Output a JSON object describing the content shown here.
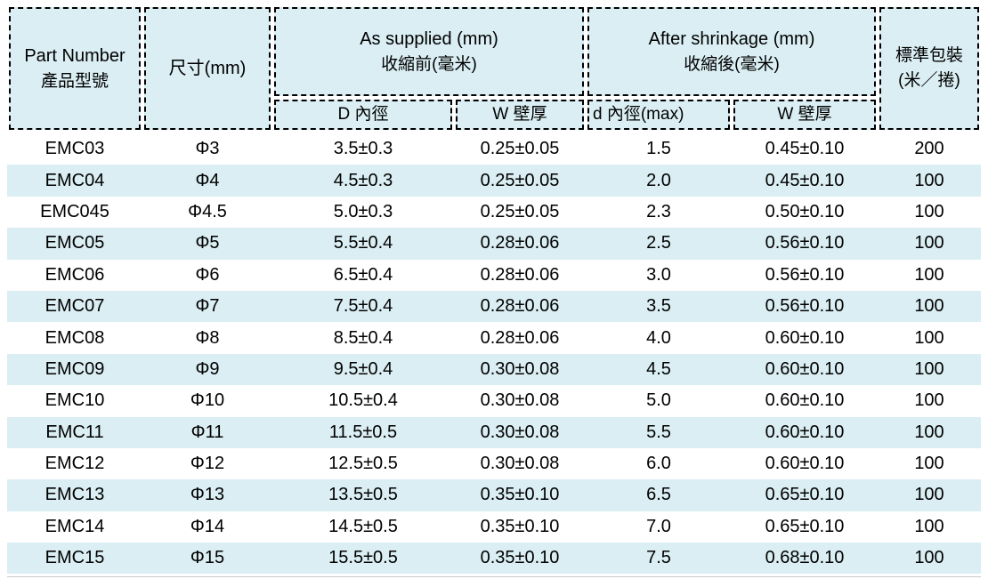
{
  "colors": {
    "header_fill": "#daeef3",
    "row_alt_fill": "#daeef3",
    "border": "#000000",
    "text": "#000000"
  },
  "header": {
    "part_number_en": "Part Number",
    "part_number_zh": "產品型號",
    "size_label": "尺寸(mm)",
    "as_supplied_en": "As supplied (mm)",
    "as_supplied_zh": "收縮前(毫米)",
    "after_shrinkage_en": "After shrinkage (mm)",
    "after_shrinkage_zh": "收縮後(毫米)",
    "package_line1": "標準包裝",
    "package_line2": "(米／捲)",
    "sub_supplied_inner_diameter": "D 內徑",
    "sub_supplied_wall_thickness": "W 壁厚",
    "sub_shrink_inner_diameter": "d 內徑(max)",
    "sub_shrink_wall_thickness": "W 壁厚"
  },
  "rows": [
    {
      "part": "EMC03",
      "size": "Φ3",
      "d_supplied": "3.5±0.3",
      "w_supplied": "0.25±0.05",
      "d_shrink": "1.5",
      "w_shrink": "0.45±0.10",
      "package": "200"
    },
    {
      "part": "EMC04",
      "size": "Φ4",
      "d_supplied": "4.5±0.3",
      "w_supplied": "0.25±0.05",
      "d_shrink": "2.0",
      "w_shrink": "0.45±0.10",
      "package": "100"
    },
    {
      "part": "EMC045",
      "size": "Φ4.5",
      "d_supplied": "5.0±0.3",
      "w_supplied": "0.25±0.05",
      "d_shrink": "2.3",
      "w_shrink": "0.50±0.10",
      "package": "100"
    },
    {
      "part": "EMC05",
      "size": "Φ5",
      "d_supplied": "5.5±0.4",
      "w_supplied": "0.28±0.06",
      "d_shrink": "2.5",
      "w_shrink": "0.56±0.10",
      "package": "100"
    },
    {
      "part": "EMC06",
      "size": "Φ6",
      "d_supplied": "6.5±0.4",
      "w_supplied": "0.28±0.06",
      "d_shrink": "3.0",
      "w_shrink": "0.56±0.10",
      "package": "100"
    },
    {
      "part": "EMC07",
      "size": "Φ7",
      "d_supplied": "7.5±0.4",
      "w_supplied": "0.28±0.06",
      "d_shrink": "3.5",
      "w_shrink": "0.56±0.10",
      "package": "100"
    },
    {
      "part": "EMC08",
      "size": "Φ8",
      "d_supplied": "8.5±0.4",
      "w_supplied": "0.28±0.06",
      "d_shrink": "4.0",
      "w_shrink": "0.60±0.10",
      "package": "100"
    },
    {
      "part": "EMC09",
      "size": "Φ9",
      "d_supplied": "9.5±0.4",
      "w_supplied": "0.30±0.08",
      "d_shrink": "4.5",
      "w_shrink": "0.60±0.10",
      "package": "100"
    },
    {
      "part": "EMC10",
      "size": "Φ10",
      "d_supplied": "10.5±0.4",
      "w_supplied": "0.30±0.08",
      "d_shrink": "5.0",
      "w_shrink": "0.60±0.10",
      "package": "100"
    },
    {
      "part": "EMC11",
      "size": "Φ11",
      "d_supplied": "11.5±0.5",
      "w_supplied": "0.30±0.08",
      "d_shrink": "5.5",
      "w_shrink": "0.60±0.10",
      "package": "100"
    },
    {
      "part": "EMC12",
      "size": "Φ12",
      "d_supplied": "12.5±0.5",
      "w_supplied": "0.30±0.08",
      "d_shrink": "6.0",
      "w_shrink": "0.60±0.10",
      "package": "100"
    },
    {
      "part": "EMC13",
      "size": "Φ13",
      "d_supplied": "13.5±0.5",
      "w_supplied": "0.35±0.10",
      "d_shrink": "6.5",
      "w_shrink": "0.65±0.10",
      "package": "100"
    },
    {
      "part": "EMC14",
      "size": "Φ14",
      "d_supplied": "14.5±0.5",
      "w_supplied": "0.35±0.10",
      "d_shrink": "7.0",
      "w_shrink": "0.65±0.10",
      "package": "100"
    },
    {
      "part": "EMC15",
      "size": "Φ15",
      "d_supplied": "15.5±0.5",
      "w_supplied": "0.35±0.10",
      "d_shrink": "7.5",
      "w_shrink": "0.68±0.10",
      "package": "100"
    }
  ]
}
